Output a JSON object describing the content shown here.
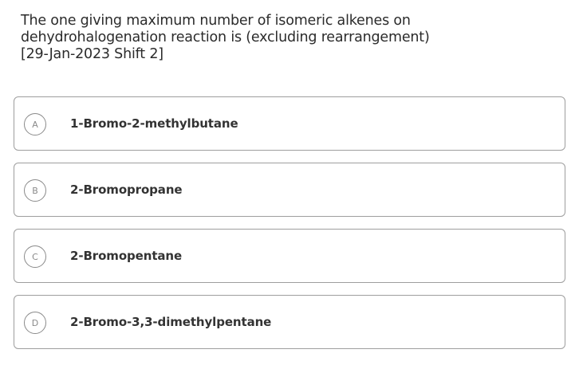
{
  "question": {
    "lines": [
      "The one giving maximum number of isomeric alkenes on",
      "dehydrohalogenation reaction is (excluding rearrangement)",
      "[29-Jan-2023 Shift 2]"
    ]
  },
  "options": [
    {
      "letter": "A",
      "text": "1-Bromo-2-methylbutane"
    },
    {
      "letter": "B",
      "text": "2-Bromopropane"
    },
    {
      "letter": "C",
      "text": "2-Bromopentane"
    },
    {
      "letter": "D",
      "text": "2-Bromo-3,3-dimethylpentane"
    }
  ]
}
